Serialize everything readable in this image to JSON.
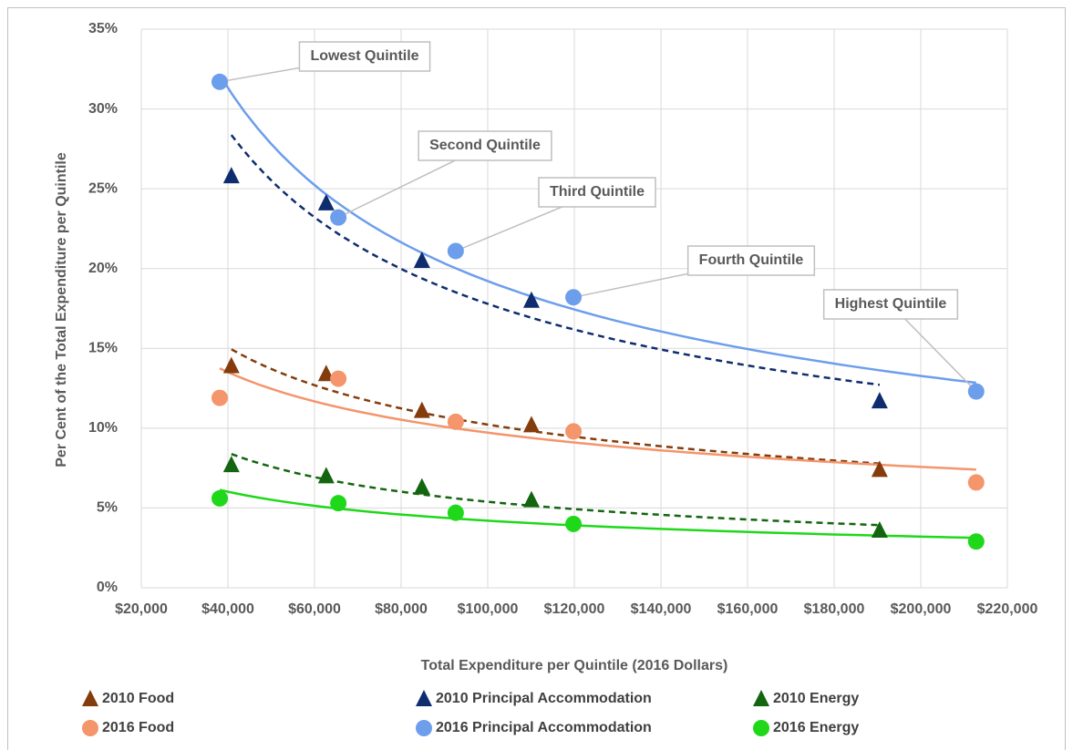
{
  "chart_data": {
    "type": "scatter",
    "xlabel": "Total Expenditure per Quintile (2016 Dollars)",
    "ylabel": "Per Cent of the Total Expenditure per Quintile",
    "xlim": [
      20000,
      220000
    ],
    "xticks": [
      {
        "value": 20000,
        "label": "$20,000"
      },
      {
        "value": 40000,
        "label": "$40,000"
      },
      {
        "value": 60000,
        "label": "$60,000"
      },
      {
        "value": 80000,
        "label": "$80,000"
      },
      {
        "value": 100000,
        "label": "$100,000"
      },
      {
        "value": 120000,
        "label": "$120,000"
      },
      {
        "value": 140000,
        "label": "$140,000"
      },
      {
        "value": 160000,
        "label": "$160,000"
      },
      {
        "value": 180000,
        "label": "$180,000"
      },
      {
        "value": 200000,
        "label": "$200,000"
      },
      {
        "value": 220000,
        "label": "$220,000"
      }
    ],
    "ylim": [
      0,
      35
    ],
    "yticks": [
      {
        "value": 0,
        "label": "0%"
      },
      {
        "value": 5,
        "label": "5%"
      },
      {
        "value": 10,
        "label": "10%"
      },
      {
        "value": 15,
        "label": "15%"
      },
      {
        "value": 20,
        "label": "20%"
      },
      {
        "value": 25,
        "label": "25%"
      },
      {
        "value": 30,
        "label": "30%"
      },
      {
        "value": 35,
        "label": "35%"
      }
    ],
    "grid": true,
    "legend": "bottom",
    "series": [
      {
        "name": "2010 Food",
        "color": "#843c0c",
        "marker": "triangle",
        "trendline": "power",
        "trendline_dash": true,
        "x": [
          40800,
          62700,
          84800,
          110100,
          190500
        ],
        "values": [
          13.9,
          13.4,
          11.1,
          10.2,
          7.4
        ]
      },
      {
        "name": "2016 Food",
        "color": "#f4956b",
        "marker": "circle",
        "trendline": "power",
        "trendline_dash": false,
        "x": [
          38100,
          65500,
          92600,
          119800,
          212800
        ],
        "values": [
          11.9,
          13.1,
          10.4,
          9.8,
          6.6
        ]
      },
      {
        "name": "2010 Principal Accommodation",
        "color": "#0f2d6e",
        "marker": "triangle",
        "trendline": "power",
        "trendline_dash": true,
        "x": [
          40800,
          62700,
          84800,
          110100,
          190500
        ],
        "values": [
          25.8,
          24.1,
          20.5,
          18.0,
          11.7
        ]
      },
      {
        "name": "2016 Principal Accommodation",
        "color": "#6d9eeb",
        "marker": "circle",
        "trendline": "power",
        "trendline_dash": false,
        "x": [
          38100,
          65500,
          92600,
          119800,
          212800
        ],
        "values": [
          31.7,
          23.2,
          21.1,
          18.2,
          12.3
        ],
        "annotations": [
          "Lowest Quintile",
          "Second Quintile",
          "Third Quintile",
          "Fourth Quintile",
          "Highest Quintile"
        ]
      },
      {
        "name": "2010 Energy",
        "color": "#13650f",
        "marker": "triangle",
        "trendline": "power",
        "trendline_dash": true,
        "x": [
          40800,
          62700,
          84800,
          110100,
          190500
        ],
        "values": [
          7.7,
          7.0,
          6.3,
          5.5,
          3.6
        ]
      },
      {
        "name": "2016 Energy",
        "color": "#1fd81a",
        "marker": "circle",
        "trendline": "power",
        "trendline_dash": false,
        "x": [
          38100,
          65500,
          92600,
          119800,
          212800
        ],
        "values": [
          5.6,
          5.3,
          4.7,
          4.0,
          2.9
        ]
      }
    ]
  }
}
